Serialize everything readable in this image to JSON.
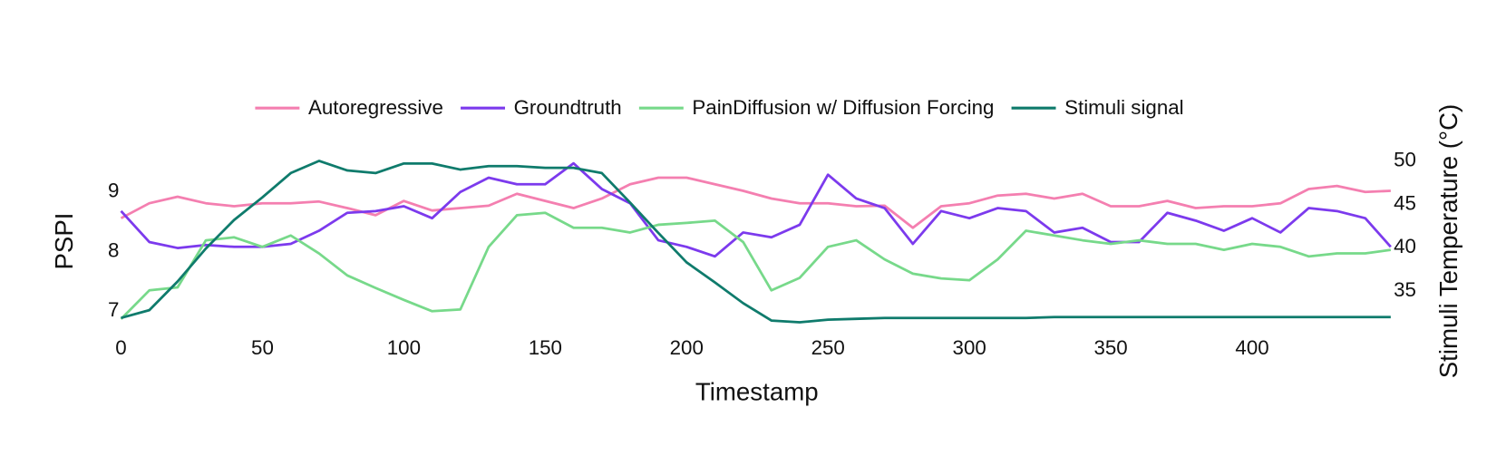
{
  "chart_data": {
    "type": "line",
    "xlabel": "Timestamp",
    "ylabel": "PSPI",
    "y2label": "Stimuli Temperature (°C)",
    "x": [
      0,
      10,
      20,
      30,
      40,
      50,
      60,
      70,
      80,
      90,
      100,
      110,
      120,
      130,
      140,
      150,
      160,
      170,
      180,
      190,
      200,
      210,
      220,
      230,
      240,
      250,
      260,
      270,
      280,
      290,
      300,
      310,
      320,
      330,
      340,
      350,
      360,
      370,
      380,
      390,
      400,
      410,
      420,
      430,
      440,
      449
    ],
    "xlim": [
      0,
      449
    ],
    "xticks": [
      0,
      50,
      100,
      150,
      200,
      250,
      300,
      350,
      400
    ],
    "ylim": [
      6.8,
      9.55
    ],
    "yticks": [
      7,
      8,
      9
    ],
    "y2lim": [
      31.3,
      50.2
    ],
    "y2ticks": [
      35,
      40,
      45,
      50
    ],
    "series": [
      {
        "name": "Autoregressive",
        "color": "#f47fb0",
        "values": [
          8.56,
          8.81,
          8.92,
          8.81,
          8.76,
          8.81,
          8.81,
          8.84,
          8.73,
          8.61,
          8.85,
          8.69,
          8.73,
          8.77,
          8.97,
          8.85,
          8.73,
          8.89,
          9.13,
          9.24,
          9.24,
          9.13,
          9.02,
          8.89,
          8.81,
          8.81,
          8.76,
          8.77,
          8.4,
          8.76,
          8.81,
          8.94,
          8.97,
          8.89,
          8.97,
          8.76,
          8.76,
          8.85,
          8.73,
          8.76,
          8.76,
          8.81,
          9.05,
          9.1,
          9.0,
          9.02
        ]
      },
      {
        "name": "Groundtruth",
        "color": "#7c3aed",
        "values": [
          8.68,
          8.16,
          8.06,
          8.11,
          8.08,
          8.08,
          8.13,
          8.35,
          8.65,
          8.68,
          8.76,
          8.56,
          9.0,
          9.24,
          9.13,
          9.13,
          9.48,
          9.05,
          8.81,
          8.19,
          8.08,
          7.92,
          8.32,
          8.24,
          8.45,
          9.29,
          8.89,
          8.73,
          8.13,
          8.68,
          8.56,
          8.73,
          8.68,
          8.32,
          8.4,
          8.16,
          8.16,
          8.65,
          8.52,
          8.35,
          8.56,
          8.32,
          8.73,
          8.68,
          8.56,
          8.08
        ]
      },
      {
        "name": "PainDiffusion w/ Diffusion Forcing",
        "color": "#77d98a",
        "values": [
          6.87,
          7.35,
          7.4,
          8.19,
          8.24,
          8.08,
          8.27,
          7.97,
          7.6,
          7.39,
          7.19,
          7.0,
          7.03,
          8.08,
          8.61,
          8.65,
          8.4,
          8.4,
          8.32,
          8.45,
          8.48,
          8.52,
          8.16,
          7.35,
          7.56,
          8.08,
          8.19,
          7.87,
          7.63,
          7.55,
          7.52,
          7.87,
          8.35,
          8.27,
          8.19,
          8.13,
          8.19,
          8.13,
          8.13,
          8.03,
          8.13,
          8.08,
          7.92,
          7.97,
          7.97,
          8.03
        ]
      },
      {
        "name": "Stimuli signal",
        "color": "#0f7b6c",
        "axis": "y2",
        "values": [
          31.9,
          32.8,
          36.1,
          39.9,
          43.2,
          45.8,
          48.6,
          50.0,
          48.9,
          48.6,
          49.7,
          49.7,
          49.0,
          49.4,
          49.4,
          49.2,
          49.2,
          48.6,
          45.2,
          41.7,
          38.3,
          36.0,
          33.6,
          31.6,
          31.4,
          31.7,
          31.8,
          31.9,
          31.9,
          31.9,
          31.9,
          31.9,
          31.9,
          32.0,
          32.0,
          32.0,
          32.0,
          32.0,
          32.0,
          32.0,
          32.0,
          32.0,
          32.0,
          32.0,
          32.0,
          32.0
        ]
      }
    ]
  }
}
